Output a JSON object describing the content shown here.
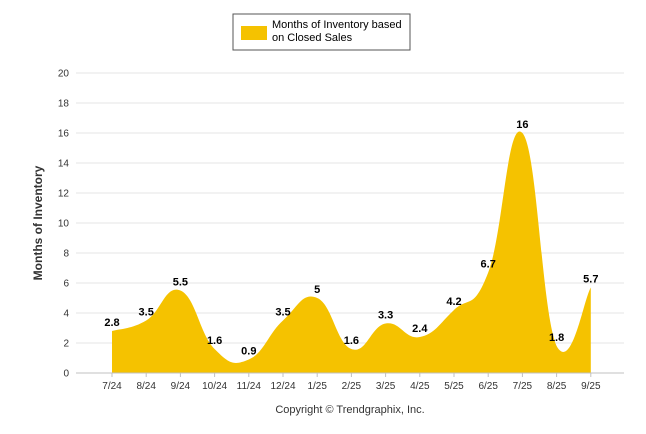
{
  "chart_data": {
    "type": "area",
    "categories": [
      "7/24",
      "8/24",
      "9/24",
      "10/24",
      "11/24",
      "12/24",
      "1/25",
      "2/25",
      "3/25",
      "4/25",
      "5/25",
      "6/25",
      "7/25",
      "8/25",
      "9/25"
    ],
    "series": [
      {
        "name": "Months of Inventory based on Closed Sales",
        "values": [
          2.8,
          3.5,
          5.5,
          1.6,
          0.9,
          3.5,
          5,
          1.6,
          3.3,
          2.4,
          4.2,
          6.7,
          16,
          1.8,
          5.7
        ],
        "labels": [
          "2.8",
          "3.5",
          "5.5",
          "1.6",
          "0.9",
          "3.5",
          "5",
          "1.6",
          "3.3",
          "2.4",
          "4.2",
          "6.7",
          "16",
          "1.8",
          "5.7"
        ]
      }
    ],
    "ylabel": "Months of Inventory",
    "xlabel": "",
    "ylim": [
      0,
      20
    ],
    "yticks": [
      "0",
      "2",
      "4",
      "6",
      "8",
      "10",
      "12",
      "14",
      "16",
      "18",
      "20"
    ],
    "legend_position": "top-center",
    "grid": true,
    "colors": {
      "area": "#F5C200",
      "grid": "#E6E6E6",
      "axis": "#C0C0C0"
    }
  },
  "legend": {
    "line1": "Months of Inventory based",
    "line2": "on Closed Sales"
  },
  "footer": {
    "copyright": "Copyright © Trendgraphix, Inc."
  }
}
